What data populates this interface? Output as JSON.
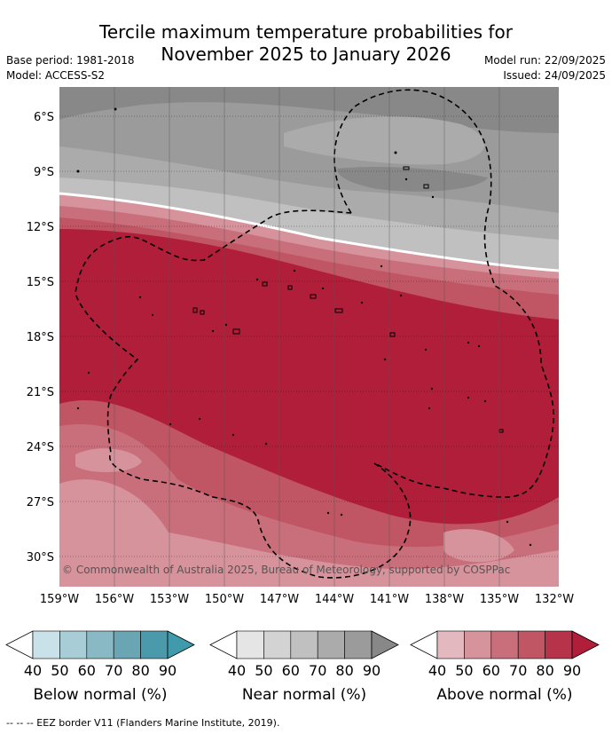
{
  "title_line1": "Tercile maximum temperature probabilities for",
  "title_line2": "November 2025 to January 2026",
  "base_period": "Base period: 1981-2018",
  "model": "Model: ACCESS-S2",
  "model_run": "Model run: 22/09/2025",
  "issued": "Issued: 24/09/2025",
  "copyright": "© Commonwealth of Australia 2025, Bureau of Meteorology, supported by COSPPac",
  "lat_labels": [
    "6°S",
    "9°S",
    "12°S",
    "15°S",
    "18°S",
    "21°S",
    "24°S",
    "27°S",
    "30°S"
  ],
  "lon_labels": [
    "159°W",
    "156°W",
    "153°W",
    "150°W",
    "147°W",
    "144°W",
    "141°W",
    "138°W",
    "135°W",
    "132°W"
  ],
  "colorbars": [
    {
      "label": "Below normal (%)",
      "ticks": [
        "40",
        "50",
        "60",
        "70",
        "80",
        "90"
      ],
      "colors": [
        "#ffffff",
        "#c9e1e8",
        "#a9cdd6",
        "#89b9c4",
        "#69a5b2",
        "#4b9aac",
        "#3f9aab"
      ]
    },
    {
      "label": "Near normal (%)",
      "ticks": [
        "40",
        "50",
        "60",
        "70",
        "80",
        "90"
      ],
      "colors": [
        "#ffffff",
        "#e5e5e5",
        "#d3d3d3",
        "#c0c0c0",
        "#ababab",
        "#9b9b9b",
        "#888888"
      ]
    },
    {
      "label": "Above normal (%)",
      "ticks": [
        "40",
        "50",
        "60",
        "70",
        "80",
        "90"
      ],
      "colors": [
        "#ffffff",
        "#e3b8bf",
        "#d6939c",
        "#c96f7b",
        "#c05564",
        "#b7334a",
        "#b01e3a"
      ]
    }
  ],
  "footer": "-- -- -- EEZ border V11 (Flanders Marine Institute, 2019)."
}
